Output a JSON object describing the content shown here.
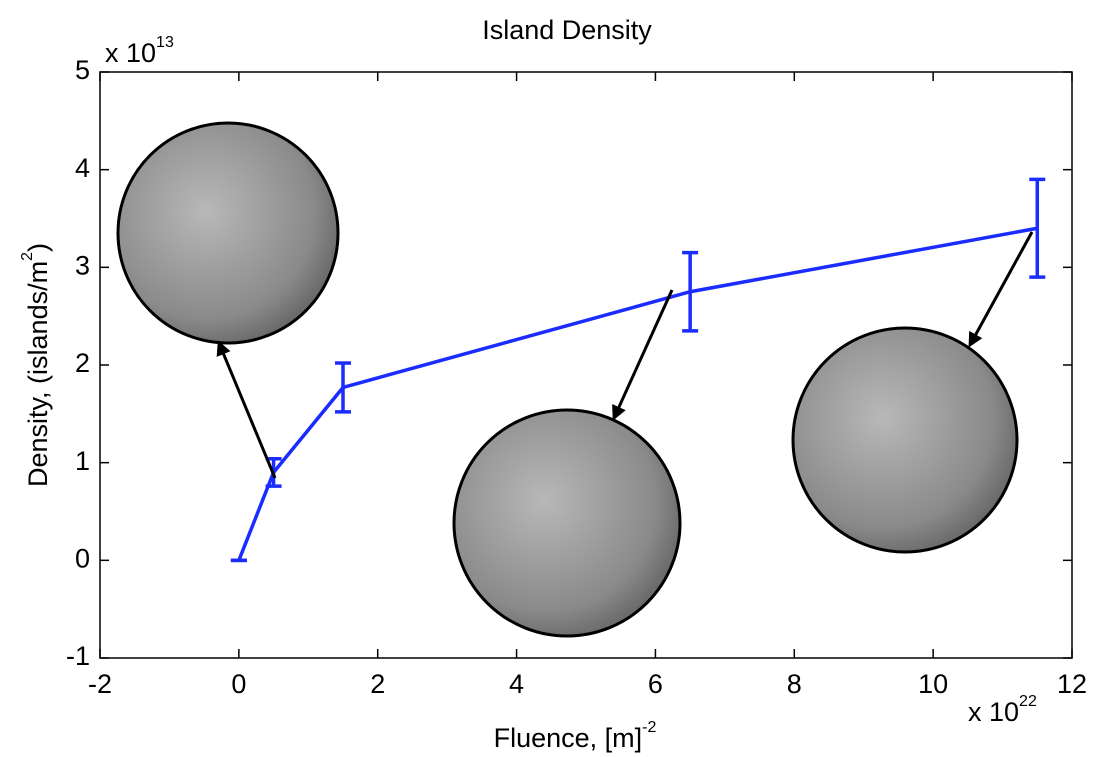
{
  "chart_data": {
    "type": "line",
    "title": "Island Density",
    "xlabel": [
      "Fluence, [m]",
      "-2"
    ],
    "ylabel": [
      "Density, (islands/m",
      "2",
      ")"
    ],
    "x_multiplier": [
      "x 10",
      "22"
    ],
    "y_multiplier": [
      "x 10",
      "13"
    ],
    "x": [
      0,
      0.5,
      1.5,
      6.5,
      11.5
    ],
    "series": [
      {
        "color": "#1a2cff",
        "values": [
          0,
          0.9,
          1.77,
          2.75,
          3.4
        ],
        "errors": [
          0,
          0.14,
          0.25,
          0.4,
          0.5
        ]
      }
    ],
    "xlim": [
      -2,
      12
    ],
    "xticks": [
      -2,
      0,
      2,
      4,
      6,
      8,
      10,
      12
    ],
    "ylim": [
      -1,
      5
    ],
    "yticks": [
      -1,
      0,
      1,
      2,
      3,
      4,
      5
    ]
  }
}
